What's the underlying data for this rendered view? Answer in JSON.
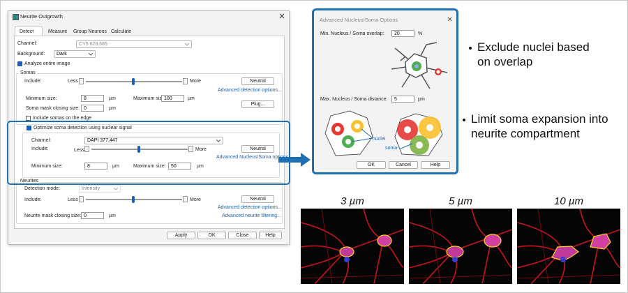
{
  "dialog": {
    "title": "Neurite Outgrowth",
    "tabs": [
      "Detect",
      "Measure",
      "Group Neurons",
      "Calculate"
    ],
    "channel_label": "Channel:",
    "channel": "CY5 628,685",
    "background_label": "Background:",
    "background": "Dark",
    "analyze_entire_image": "Analyze entire image",
    "somas": {
      "heading": "Somas",
      "include_label": "Include:",
      "less": "Less",
      "more": "More",
      "neutral": "Neutral",
      "advanced_link": "Advanced detection options...",
      "plug": "Plug...",
      "min_size_label": "Minimum size:",
      "min_size": 8,
      "max_size_label": "Maximum size:",
      "max_size": 100,
      "unit": "µm",
      "closing_label": "Soma mask closing size:",
      "closing_size": 0,
      "include_edge": "Include somas on the edge"
    },
    "nuclear": {
      "checkbox": "Optimize soma detection using nuclear signal",
      "channel_label": "Channel:",
      "channel": "DAPI 377,447",
      "include_label": "Include:",
      "less": "Less",
      "more": "More",
      "neutral": "Neutral",
      "advanced_link": "Advanced Nucleus/Soma options...",
      "min_size_label": "Minimum size:",
      "min_size": 8,
      "max_size_label": "Maximum size:",
      "max_size": 50,
      "unit": "µm"
    },
    "neurites": {
      "heading": "Neurites",
      "mode_label": "Detection mode:",
      "mode": "Intensity",
      "include_label": "Include:",
      "less": "Less",
      "more": "More",
      "neutral": "Neutral",
      "advanced_link": "Advanced detection options...",
      "closing_label": "Neurite mask closing size:",
      "closing_size": 0,
      "unit": "µm",
      "filtering_link": "Advanced neurite filtering..."
    },
    "buttons": [
      "Apply",
      "OK",
      "Close",
      "Help"
    ]
  },
  "advanced_dialog": {
    "title": "Advanced Nucleus/Soma Options",
    "overlap_label": "Min. Nucleus / Soma overlap:",
    "overlap": 20,
    "overlap_unit": "%",
    "distance_label": "Max. Nucleus / Soma distance:",
    "distance": 5,
    "distance_unit": "µm",
    "nuclei_label": "nuclei",
    "soma_label": "soma",
    "buttons": [
      "OK",
      "Cancel",
      "Help"
    ]
  },
  "bullets": [
    "Exclude nuclei based on overlap",
    "Limit soma expansion into neurite compartment"
  ],
  "images": [
    {
      "label": "3 µm"
    },
    {
      "label": "5 µm"
    },
    {
      "label": "10 µm"
    }
  ]
}
